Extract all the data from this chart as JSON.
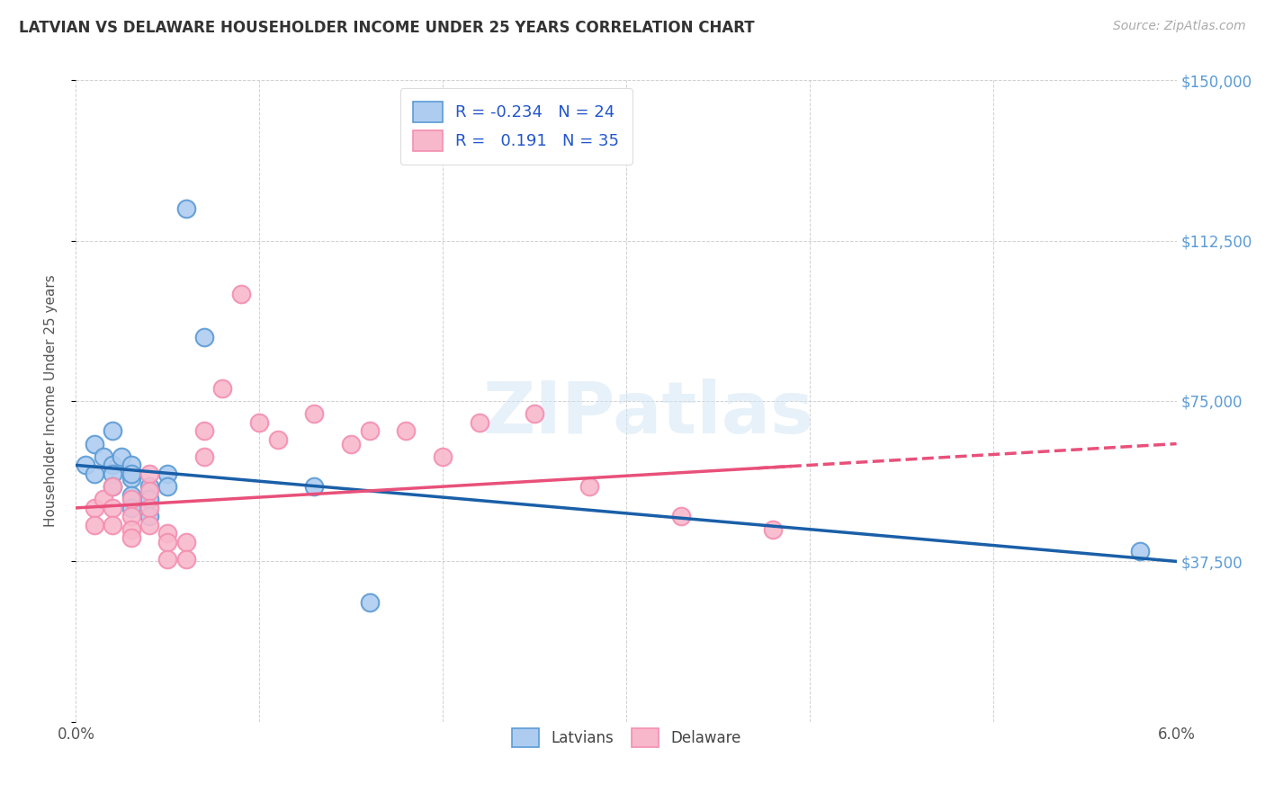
{
  "title": "LATVIAN VS DELAWARE HOUSEHOLDER INCOME UNDER 25 YEARS CORRELATION CHART",
  "source": "Source: ZipAtlas.com",
  "ylabel_label": "Householder Income Under 25 years",
  "x_min": 0.0,
  "x_max": 0.06,
  "y_min": 0,
  "y_max": 150000,
  "x_ticks": [
    0.0,
    0.01,
    0.02,
    0.03,
    0.04,
    0.05,
    0.06
  ],
  "x_tick_labels": [
    "0.0%",
    "",
    "",
    "",
    "",
    "",
    "6.0%"
  ],
  "y_ticks": [
    0,
    37500,
    75000,
    112500,
    150000
  ],
  "y_tick_labels": [
    "",
    "$37,500",
    "$75,000",
    "$112,500",
    "$150,000"
  ],
  "legend_items": [
    {
      "label": "R = -0.234   N = 24"
    },
    {
      "label": "R =   0.191   N = 35"
    }
  ],
  "watermark": "ZIPatlas",
  "blue_edge_color": "#5b9bd5",
  "pink_edge_color": "#f48fb1",
  "blue_fill_color": "#aeccf0",
  "pink_fill_color": "#f8b8cc",
  "blue_line_color": "#1a5fa8",
  "pink_line_color": "#e8507a",
  "latvians_x": [
    0.0005,
    0.001,
    0.001,
    0.0015,
    0.002,
    0.002,
    0.002,
    0.002,
    0.0025,
    0.003,
    0.003,
    0.003,
    0.003,
    0.003,
    0.004,
    0.004,
    0.004,
    0.005,
    0.005,
    0.006,
    0.007,
    0.013,
    0.016,
    0.058
  ],
  "latvians_y": [
    60000,
    65000,
    58000,
    62000,
    68000,
    60000,
    58000,
    55000,
    62000,
    60000,
    57000,
    53000,
    50000,
    58000,
    55000,
    52000,
    48000,
    58000,
    55000,
    120000,
    90000,
    55000,
    28000,
    40000
  ],
  "delaware_x": [
    0.001,
    0.001,
    0.0015,
    0.002,
    0.002,
    0.002,
    0.003,
    0.003,
    0.003,
    0.003,
    0.004,
    0.004,
    0.004,
    0.004,
    0.005,
    0.005,
    0.005,
    0.006,
    0.006,
    0.007,
    0.007,
    0.008,
    0.009,
    0.01,
    0.011,
    0.013,
    0.015,
    0.016,
    0.018,
    0.02,
    0.022,
    0.025,
    0.028,
    0.033,
    0.038
  ],
  "delaware_y": [
    50000,
    46000,
    52000,
    55000,
    50000,
    46000,
    52000,
    48000,
    45000,
    43000,
    58000,
    54000,
    50000,
    46000,
    44000,
    42000,
    38000,
    42000,
    38000,
    68000,
    62000,
    78000,
    100000,
    70000,
    66000,
    72000,
    65000,
    68000,
    68000,
    62000,
    70000,
    72000,
    55000,
    48000,
    45000
  ]
}
